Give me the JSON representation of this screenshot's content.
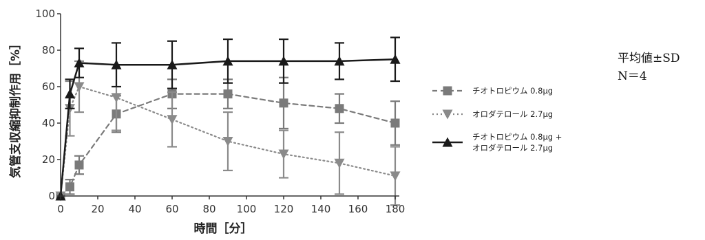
{
  "chart_data": {
    "type": "line",
    "xlabel": "時間［分］",
    "ylabel": "気管支収縮抑制作用［%］",
    "xlim": [
      0,
      180
    ],
    "ylim": [
      0,
      100
    ],
    "x_ticks": [
      0,
      20,
      40,
      60,
      80,
      100,
      120,
      140,
      160,
      180
    ],
    "y_ticks": [
      0,
      20,
      40,
      60,
      80,
      100
    ],
    "grid": false,
    "legend_position": "right",
    "notes": [
      "平均値±SD",
      "N＝4"
    ],
    "series": [
      {
        "name": "チオトロピウム 0.8μg",
        "marker": "square",
        "line": "dashed",
        "color": "#7a7a7a",
        "x": [
          0,
          5,
          10,
          30,
          60,
          90,
          120,
          150,
          180
        ],
        "y": [
          0,
          5,
          17,
          45,
          56,
          56,
          51,
          48,
          40
        ],
        "err": [
          0,
          4,
          5,
          10,
          8,
          8,
          14,
          8,
          12
        ]
      },
      {
        "name": "オロダテロール 2.7μg",
        "marker": "triangle-down",
        "line": "dotted",
        "color": "#8a8a8a",
        "x": [
          0,
          5,
          10,
          30,
          60,
          90,
          120,
          150,
          180
        ],
        "y": [
          0,
          48,
          60,
          54,
          42,
          30,
          23,
          18,
          11
        ],
        "err": [
          0,
          15,
          14,
          18,
          15,
          16,
          13,
          17,
          16
        ]
      },
      {
        "name": "チオトロピウム 0.8μg + オロダテロール 2.7μg",
        "label_lines": [
          "チオトロピウム 0.8μg +",
          "オロダテロール 2.7μg"
        ],
        "marker": "triangle-up",
        "line": "solid",
        "color": "#1a1a1a",
        "x": [
          0,
          5,
          10,
          30,
          60,
          90,
          120,
          150,
          180
        ],
        "y": [
          0,
          56,
          73,
          72,
          72,
          74,
          74,
          74,
          75
        ],
        "err": [
          0,
          8,
          8,
          12,
          13,
          12,
          12,
          10,
          12
        ]
      }
    ]
  }
}
